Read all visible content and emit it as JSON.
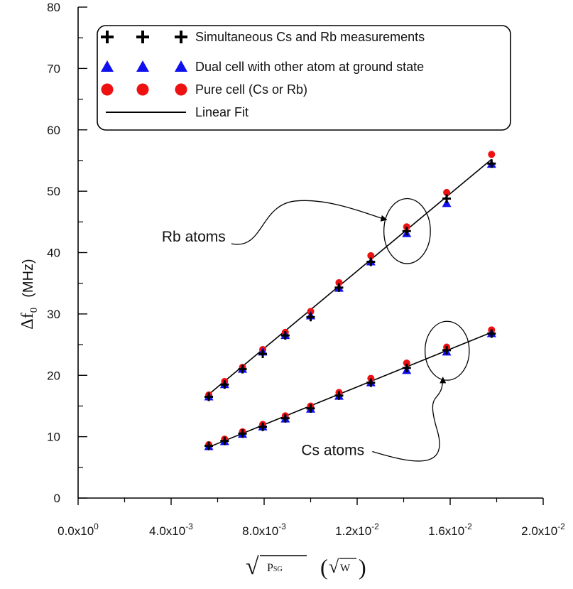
{
  "chart_data": {
    "type": "scatter",
    "xlabel": {
      "main": "√",
      "sub_p": "P",
      "sub_sg": "SG",
      "unit_open": "(",
      "unit_root": "√",
      "unit_w": "W",
      "unit_close": ")"
    },
    "ylabel": {
      "delta": "Δf",
      "sub": "0",
      "unit": "(MHz)"
    },
    "xlim": [
      0,
      0.02
    ],
    "ylim": [
      0,
      80
    ],
    "x_ticks": [
      {
        "value": 0.0,
        "mant": "0.0x10",
        "exp": "0"
      },
      {
        "value": 0.004,
        "mant": "4.0x10",
        "exp": "-3"
      },
      {
        "value": 0.008,
        "mant": "8.0x10",
        "exp": "-3"
      },
      {
        "value": 0.012,
        "mant": "1.2x10",
        "exp": "-2"
      },
      {
        "value": 0.016,
        "mant": "1.6x10",
        "exp": "-2"
      },
      {
        "value": 0.02,
        "mant": "2.0x10",
        "exp": "-2"
      }
    ],
    "y_ticks": [
      {
        "value": 0,
        "label": "0"
      },
      {
        "value": 10,
        "label": "10"
      },
      {
        "value": 20,
        "label": "20"
      },
      {
        "value": 30,
        "label": "30"
      },
      {
        "value": 40,
        "label": "40"
      },
      {
        "value": 50,
        "label": "50"
      },
      {
        "value": 60,
        "label": "60"
      },
      {
        "value": 70,
        "label": "70"
      },
      {
        "value": 80,
        "label": "80"
      }
    ],
    "x": [
      0.00562,
      0.0063,
      0.00707,
      0.00794,
      0.00891,
      0.01,
      0.01122,
      0.01259,
      0.01413,
      0.01585,
      0.01778
    ],
    "legend": [
      {
        "marker": "plus",
        "label": "Simultaneous Cs and Rb measurements",
        "color": "#000000"
      },
      {
        "marker": "triangle",
        "label": "Dual cell with other atom at ground state",
        "color": "#1010ee"
      },
      {
        "marker": "circle",
        "label": "Pure cell (Cs or Rb)",
        "color": "#ee1111"
      },
      {
        "marker": "line",
        "label": "Linear Fit",
        "color": "#000000"
      }
    ],
    "series": [
      {
        "name": "Rb - Simultaneous Cs and Rb measurements",
        "marker": "plus",
        "color": "#000000",
        "values": [
          16.5,
          18.5,
          21.0,
          23.5,
          26.5,
          29.5,
          34.3,
          38.5,
          43.5,
          48.8,
          54.5
        ]
      },
      {
        "name": "Rb - Dual cell with other atom at ground state",
        "marker": "triangle",
        "color": "#1010ee",
        "values": [
          16.5,
          18.5,
          21.0,
          23.8,
          26.5,
          29.7,
          34.2,
          38.5,
          43.1,
          48.0,
          54.4
        ]
      },
      {
        "name": "Rb - Pure cell (Cs or Rb)",
        "marker": "circle",
        "color": "#ee1111",
        "values": [
          16.8,
          19.0,
          21.3,
          24.2,
          27.0,
          30.4,
          35.1,
          39.5,
          44.2,
          49.8,
          56.0
        ]
      },
      {
        "name": "Cs - Simultaneous Cs and Rb measurements",
        "marker": "plus",
        "color": "#000000",
        "values": [
          8.5,
          9.3,
          10.5,
          11.6,
          13.0,
          14.6,
          16.7,
          18.8,
          21.2,
          24.1,
          26.8
        ]
      },
      {
        "name": "Cs - Dual cell with other atom at ground state",
        "marker": "triangle",
        "color": "#1010ee",
        "values": [
          8.4,
          9.2,
          10.4,
          11.6,
          12.9,
          14.5,
          16.6,
          18.8,
          20.8,
          23.8,
          26.8
        ]
      },
      {
        "name": "Cs - Pure cell (Cs or Rb)",
        "marker": "circle",
        "color": "#ee1111",
        "values": [
          8.7,
          9.6,
          10.8,
          12.0,
          13.4,
          15.0,
          17.2,
          19.5,
          22.0,
          24.6,
          27.4
        ]
      }
    ],
    "fits": [
      {
        "name": "Rb linear fit",
        "x": [
          0.00562,
          0.01778
        ],
        "y": [
          16.9,
          55.2
        ]
      },
      {
        "name": "Cs linear fit",
        "x": [
          0.00562,
          0.01778
        ],
        "y": [
          8.3,
          27.0
        ]
      }
    ],
    "annotations": [
      {
        "text": "Rb atoms",
        "label_x": 0.0036,
        "label_y": 41.8,
        "ellipse_cx": 0.01415,
        "ellipse_cy": 43.5,
        "ellipse_rx": 0.001,
        "ellipse_ry": 5.3
      },
      {
        "text": "Cs atoms",
        "label_x": 0.0096,
        "label_y": 7.0,
        "ellipse_cx": 0.01587,
        "ellipse_cy": 24.0,
        "ellipse_rx": 0.00095,
        "ellipse_ry": 4.8
      }
    ]
  }
}
